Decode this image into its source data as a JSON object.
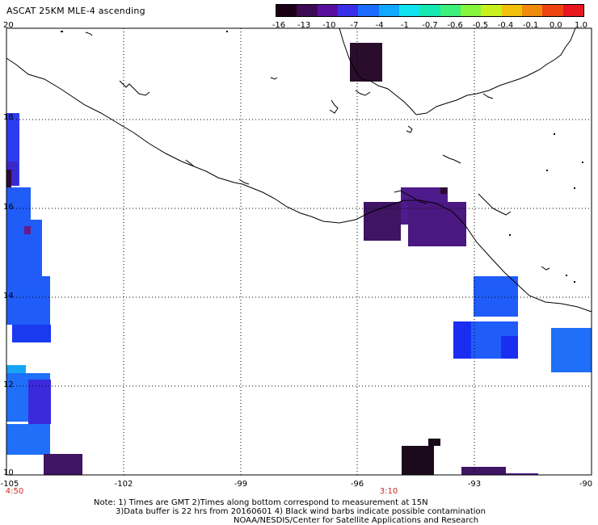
{
  "title": "ASCAT 25KM MLE-4 ascending",
  "colorbar": {
    "colors": [
      "#1b0015",
      "#3a0a52",
      "#5a0f9c",
      "#3a2fe8",
      "#1b6cff",
      "#12a8ff",
      "#10e2ef",
      "#16e6b0",
      "#3cf07a",
      "#86f53e",
      "#c8f01e",
      "#f0c00a",
      "#f08a0a",
      "#ee4510",
      "#e8161e"
    ],
    "labels": [
      "-16",
      "-13",
      "-10",
      "-7",
      "-4",
      "-1",
      "-0.7",
      "-0.6",
      "-0.5",
      "-0.4",
      "-0.1",
      "0.0",
      "1.0"
    ]
  },
  "axes": {
    "y_labels": [
      "20",
      "18",
      "16",
      "14",
      "12",
      "10"
    ],
    "x_labels": [
      "-105",
      "-102",
      "-99",
      "-96",
      "-93",
      "-90"
    ],
    "time_labels": [
      "4:50",
      "3:10"
    ]
  },
  "notes": [
    "Note: 1) Times are GMT 2)Times along bottom correspond to measurement at 15N",
    "3)Data buffer is 22 hrs from 20160601 4) Black wind barbs indicate possible contamination",
    "NOAA/NESDIS/Center for Satellite Applications and Research"
  ],
  "palette": {
    "dark": "#1b0a1c",
    "purple": "#3f1463",
    "violet": "#4f1a8c",
    "blue": "#1d3cf2",
    "midblue": "#1f5cf8",
    "lightblue": "#1f6ff8",
    "cyan": "#16a5f5"
  }
}
